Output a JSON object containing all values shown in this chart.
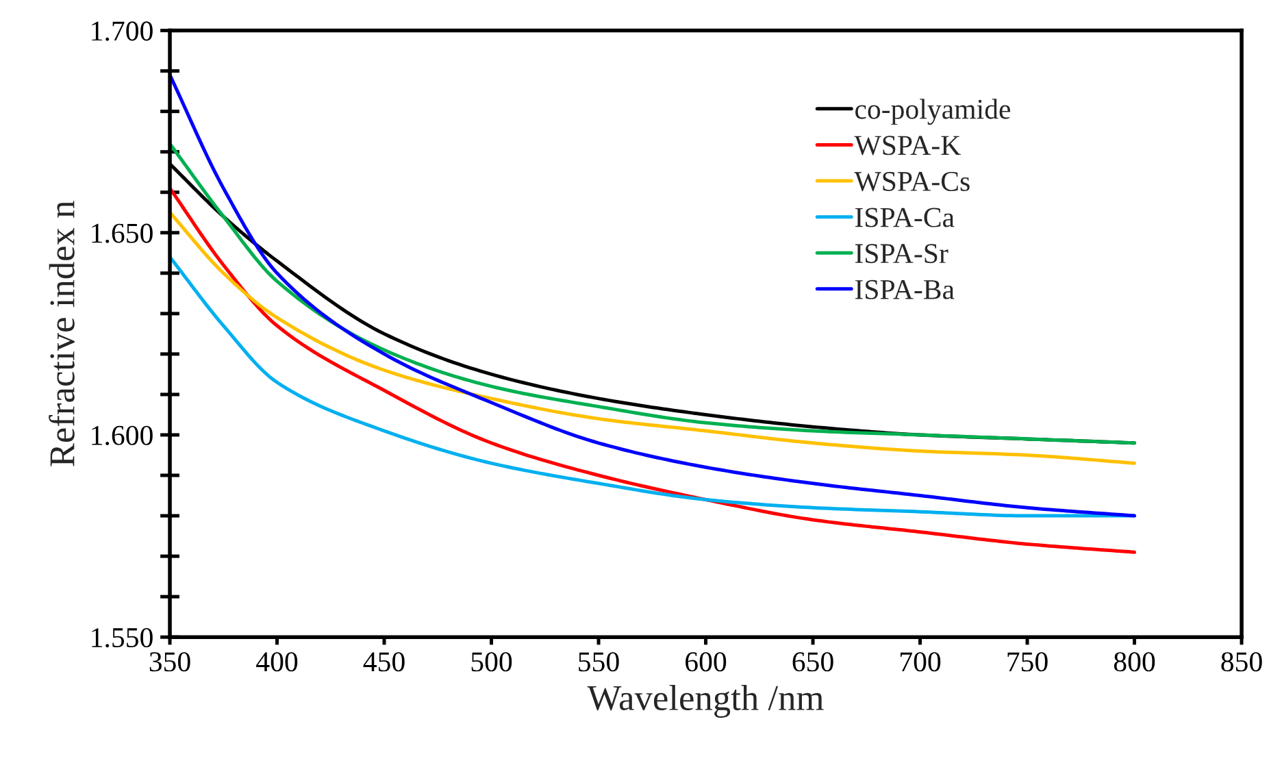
{
  "chart_data": {
    "type": "line",
    "xlabel": "Wavelength /nm",
    "ylabel": "Refractive index n",
    "x": [
      350,
      375,
      400,
      450,
      500,
      550,
      600,
      650,
      700,
      750,
      800
    ],
    "series": [
      {
        "name": "co-polyamide",
        "color": "#000000",
        "values": [
          1.667,
          1.654,
          1.643,
          1.625,
          1.615,
          1.609,
          1.605,
          1.602,
          1.6,
          1.599,
          1.598
        ]
      },
      {
        "name": "WSPA-K",
        "color": "#ff0000",
        "values": [
          1.661,
          1.642,
          1.627,
          1.611,
          1.598,
          1.59,
          1.584,
          1.579,
          1.576,
          1.573,
          1.571
        ]
      },
      {
        "name": "WSPA-Cs",
        "color": "#ffc000",
        "values": [
          1.655,
          1.64,
          1.629,
          1.616,
          1.609,
          1.604,
          1.601,
          1.598,
          1.596,
          1.595,
          1.593
        ]
      },
      {
        "name": "ISPA-Ca",
        "color": "#00b0f0",
        "values": [
          1.644,
          1.627,
          1.613,
          1.601,
          1.593,
          1.588,
          1.584,
          1.582,
          1.581,
          1.58,
          1.58
        ]
      },
      {
        "name": "ISPA-Sr",
        "color": "#00b050",
        "values": [
          1.672,
          1.654,
          1.638,
          1.621,
          1.612,
          1.607,
          1.603,
          1.601,
          1.6,
          1.599,
          1.598
        ]
      },
      {
        "name": "ISPA-Ba",
        "color": "#0000ff",
        "values": [
          1.689,
          1.661,
          1.64,
          1.62,
          1.608,
          1.598,
          1.592,
          1.588,
          1.585,
          1.582,
          1.58
        ]
      }
    ],
    "xlim": [
      350,
      850
    ],
    "xticks": [
      350,
      400,
      450,
      500,
      550,
      600,
      650,
      700,
      750,
      800,
      850
    ],
    "ylim": [
      1.55,
      1.7
    ],
    "yticks": [
      {
        "value": 1.55,
        "label": "1.550"
      },
      {
        "value": 1.56,
        "label": null
      },
      {
        "value": 1.57,
        "label": null
      },
      {
        "value": 1.58,
        "label": null
      },
      {
        "value": 1.59,
        "label": null
      },
      {
        "value": 1.6,
        "label": "1.600"
      },
      {
        "value": 1.61,
        "label": null
      },
      {
        "value": 1.62,
        "label": null
      },
      {
        "value": 1.63,
        "label": null
      },
      {
        "value": 1.64,
        "label": null
      },
      {
        "value": 1.65,
        "label": "1.650"
      },
      {
        "value": 1.66,
        "label": null
      },
      {
        "value": 1.67,
        "label": null
      },
      {
        "value": 1.68,
        "label": null
      },
      {
        "value": 1.69,
        "label": null
      },
      {
        "value": 1.7,
        "label": "1.700"
      }
    ],
    "grid": false,
    "legend": "top right",
    "line_style": "solid",
    "marker": "none"
  }
}
